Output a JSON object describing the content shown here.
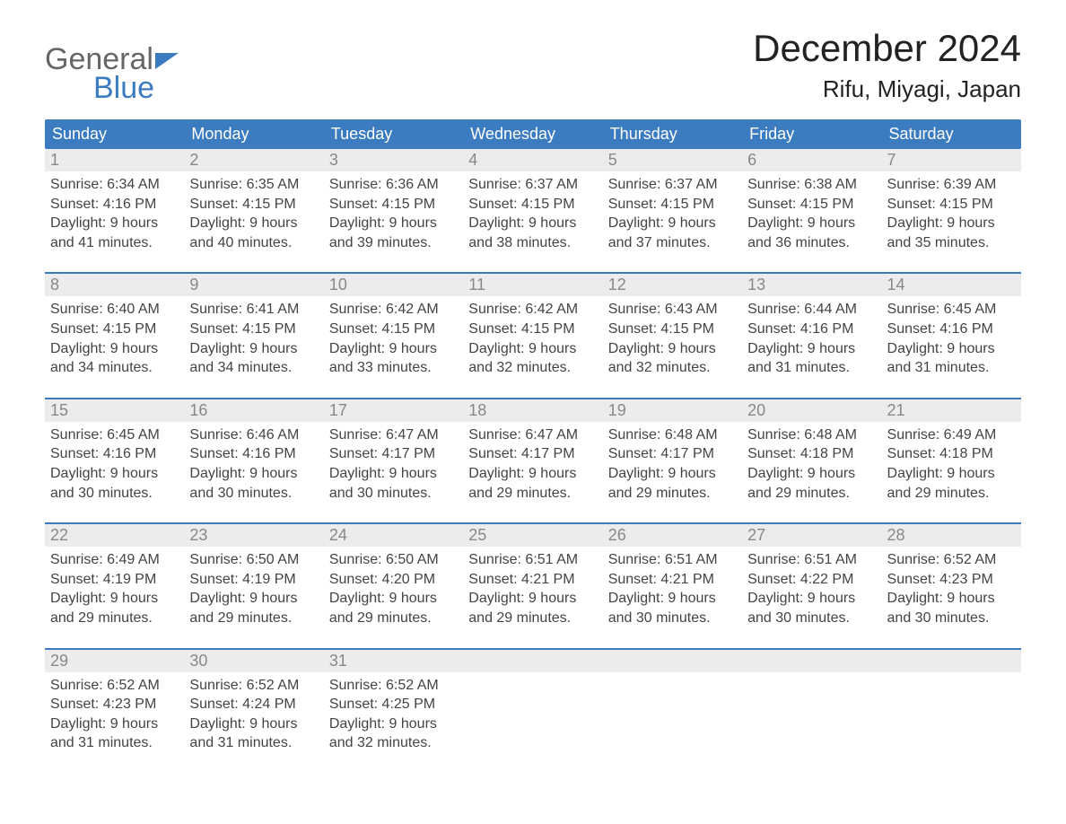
{
  "brand": {
    "line1": "General",
    "line2": "Blue"
  },
  "colors": {
    "header_bg": "#3b7bbf",
    "header_text": "#ffffff",
    "daynum_bg": "#ececec",
    "daynum_text": "#888888",
    "body_text": "#444444",
    "accent": "#3b7bbf",
    "page_bg": "#ffffff"
  },
  "title": "December 2024",
  "location": "Rifu, Miyagi, Japan",
  "dow": [
    "Sunday",
    "Monday",
    "Tuesday",
    "Wednesday",
    "Thursday",
    "Friday",
    "Saturday"
  ],
  "weeks": [
    [
      {
        "n": "1",
        "sr": "6:34 AM",
        "ss": "4:16 PM",
        "dl1": "9 hours",
        "dl2": "and 41 minutes."
      },
      {
        "n": "2",
        "sr": "6:35 AM",
        "ss": "4:15 PM",
        "dl1": "9 hours",
        "dl2": "and 40 minutes."
      },
      {
        "n": "3",
        "sr": "6:36 AM",
        "ss": "4:15 PM",
        "dl1": "9 hours",
        "dl2": "and 39 minutes."
      },
      {
        "n": "4",
        "sr": "6:37 AM",
        "ss": "4:15 PM",
        "dl1": "9 hours",
        "dl2": "and 38 minutes."
      },
      {
        "n": "5",
        "sr": "6:37 AM",
        "ss": "4:15 PM",
        "dl1": "9 hours",
        "dl2": "and 37 minutes."
      },
      {
        "n": "6",
        "sr": "6:38 AM",
        "ss": "4:15 PM",
        "dl1": "9 hours",
        "dl2": "and 36 minutes."
      },
      {
        "n": "7",
        "sr": "6:39 AM",
        "ss": "4:15 PM",
        "dl1": "9 hours",
        "dl2": "and 35 minutes."
      }
    ],
    [
      {
        "n": "8",
        "sr": "6:40 AM",
        "ss": "4:15 PM",
        "dl1": "9 hours",
        "dl2": "and 34 minutes."
      },
      {
        "n": "9",
        "sr": "6:41 AM",
        "ss": "4:15 PM",
        "dl1": "9 hours",
        "dl2": "and 34 minutes."
      },
      {
        "n": "10",
        "sr": "6:42 AM",
        "ss": "4:15 PM",
        "dl1": "9 hours",
        "dl2": "and 33 minutes."
      },
      {
        "n": "11",
        "sr": "6:42 AM",
        "ss": "4:15 PM",
        "dl1": "9 hours",
        "dl2": "and 32 minutes."
      },
      {
        "n": "12",
        "sr": "6:43 AM",
        "ss": "4:15 PM",
        "dl1": "9 hours",
        "dl2": "and 32 minutes."
      },
      {
        "n": "13",
        "sr": "6:44 AM",
        "ss": "4:16 PM",
        "dl1": "9 hours",
        "dl2": "and 31 minutes."
      },
      {
        "n": "14",
        "sr": "6:45 AM",
        "ss": "4:16 PM",
        "dl1": "9 hours",
        "dl2": "and 31 minutes."
      }
    ],
    [
      {
        "n": "15",
        "sr": "6:45 AM",
        "ss": "4:16 PM",
        "dl1": "9 hours",
        "dl2": "and 30 minutes."
      },
      {
        "n": "16",
        "sr": "6:46 AM",
        "ss": "4:16 PM",
        "dl1": "9 hours",
        "dl2": "and 30 minutes."
      },
      {
        "n": "17",
        "sr": "6:47 AM",
        "ss": "4:17 PM",
        "dl1": "9 hours",
        "dl2": "and 30 minutes."
      },
      {
        "n": "18",
        "sr": "6:47 AM",
        "ss": "4:17 PM",
        "dl1": "9 hours",
        "dl2": "and 29 minutes."
      },
      {
        "n": "19",
        "sr": "6:48 AM",
        "ss": "4:17 PM",
        "dl1": "9 hours",
        "dl2": "and 29 minutes."
      },
      {
        "n": "20",
        "sr": "6:48 AM",
        "ss": "4:18 PM",
        "dl1": "9 hours",
        "dl2": "and 29 minutes."
      },
      {
        "n": "21",
        "sr": "6:49 AM",
        "ss": "4:18 PM",
        "dl1": "9 hours",
        "dl2": "and 29 minutes."
      }
    ],
    [
      {
        "n": "22",
        "sr": "6:49 AM",
        "ss": "4:19 PM",
        "dl1": "9 hours",
        "dl2": "and 29 minutes."
      },
      {
        "n": "23",
        "sr": "6:50 AM",
        "ss": "4:19 PM",
        "dl1": "9 hours",
        "dl2": "and 29 minutes."
      },
      {
        "n": "24",
        "sr": "6:50 AM",
        "ss": "4:20 PM",
        "dl1": "9 hours",
        "dl2": "and 29 minutes."
      },
      {
        "n": "25",
        "sr": "6:51 AM",
        "ss": "4:21 PM",
        "dl1": "9 hours",
        "dl2": "and 29 minutes."
      },
      {
        "n": "26",
        "sr": "6:51 AM",
        "ss": "4:21 PM",
        "dl1": "9 hours",
        "dl2": "and 30 minutes."
      },
      {
        "n": "27",
        "sr": "6:51 AM",
        "ss": "4:22 PM",
        "dl1": "9 hours",
        "dl2": "and 30 minutes."
      },
      {
        "n": "28",
        "sr": "6:52 AM",
        "ss": "4:23 PM",
        "dl1": "9 hours",
        "dl2": "and 30 minutes."
      }
    ],
    [
      {
        "n": "29",
        "sr": "6:52 AM",
        "ss": "4:23 PM",
        "dl1": "9 hours",
        "dl2": "and 31 minutes."
      },
      {
        "n": "30",
        "sr": "6:52 AM",
        "ss": "4:24 PM",
        "dl1": "9 hours",
        "dl2": "and 31 minutes."
      },
      {
        "n": "31",
        "sr": "6:52 AM",
        "ss": "4:25 PM",
        "dl1": "9 hours",
        "dl2": "and 32 minutes."
      },
      null,
      null,
      null,
      null
    ]
  ],
  "labels": {
    "sunrise": "Sunrise:",
    "sunset": "Sunset:",
    "daylight": "Daylight:"
  }
}
